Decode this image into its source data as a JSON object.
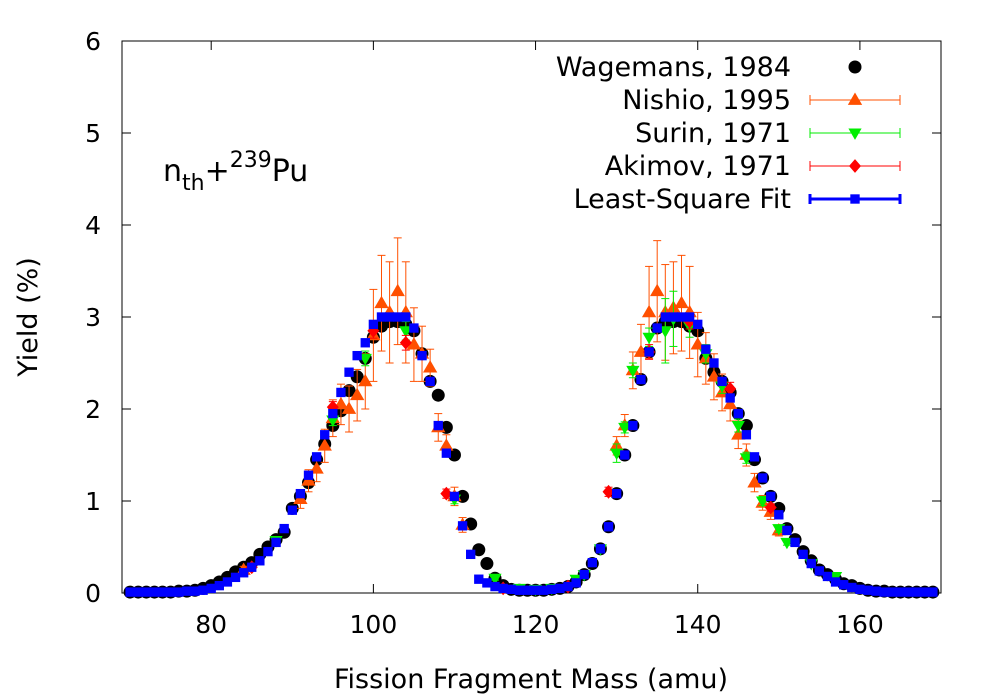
{
  "chart_data": {
    "type": "scatter",
    "title": "",
    "xlabel": "Fission Fragment Mass (amu)",
    "ylabel": "Yield (%)",
    "xlim": [
      69,
      170
    ],
    "ylim": [
      0,
      6
    ],
    "x_ticks": [
      80,
      100,
      120,
      140,
      160
    ],
    "y_ticks": [
      0,
      1,
      2,
      3,
      4,
      5,
      6
    ],
    "grid": false,
    "legend_position": "top-right",
    "annotation": {
      "base": "n",
      "sub": "th",
      "plus": "+",
      "sup": "239",
      "element": "Pu"
    },
    "series": [
      {
        "name": "Wagemans, 1984",
        "marker": "circle",
        "color": "#000000",
        "x": [
          70,
          71,
          72,
          73,
          74,
          75,
          76,
          77,
          78,
          79,
          80,
          81,
          82,
          83,
          84,
          85,
          86,
          87,
          88,
          89,
          90,
          91,
          92,
          93,
          94,
          95,
          96,
          97,
          98,
          99,
          100,
          101,
          102,
          103,
          104,
          105,
          106,
          107,
          108,
          109,
          110,
          111,
          112,
          113,
          114,
          115,
          116,
          117,
          118,
          119,
          120,
          121,
          122,
          123,
          124,
          125,
          126,
          127,
          128,
          129,
          130,
          131,
          132,
          133,
          134,
          135,
          136,
          137,
          138,
          139,
          140,
          141,
          142,
          143,
          144,
          145,
          146,
          147,
          148,
          149,
          150,
          151,
          152,
          153,
          154,
          155,
          156,
          157,
          158,
          159,
          160,
          161,
          162,
          163,
          164,
          165,
          166,
          167,
          168,
          169
        ],
        "y": [
          0.01,
          0.01,
          0.01,
          0.01,
          0.01,
          0.01,
          0.02,
          0.02,
          0.03,
          0.05,
          0.08,
          0.12,
          0.17,
          0.23,
          0.28,
          0.33,
          0.42,
          0.5,
          0.58,
          0.66,
          0.92,
          1.05,
          1.2,
          1.45,
          1.62,
          1.82,
          1.98,
          2.2,
          2.35,
          2.55,
          2.78,
          2.9,
          2.95,
          2.95,
          2.92,
          2.85,
          2.6,
          2.3,
          2.15,
          1.8,
          1.5,
          1.05,
          0.75,
          0.47,
          0.32,
          0.16,
          0.08,
          0.04,
          0.03,
          0.03,
          0.03,
          0.03,
          0.04,
          0.05,
          0.07,
          0.12,
          0.2,
          0.32,
          0.48,
          0.72,
          1.08,
          1.5,
          1.82,
          2.32,
          2.62,
          2.88,
          2.95,
          2.95,
          2.95,
          2.9,
          2.85,
          2.55,
          2.4,
          2.3,
          2.18,
          1.95,
          1.82,
          1.45,
          1.25,
          1.05,
          0.92,
          0.7,
          0.58,
          0.45,
          0.35,
          0.25,
          0.2,
          0.15,
          0.1,
          0.08,
          0.05,
          0.03,
          0.02,
          0.02,
          0.01,
          0.01,
          0.01,
          0.01,
          0.01,
          0.01
        ]
      },
      {
        "name": "Nishio, 1995",
        "marker": "triangle-up",
        "color": "#ff5000",
        "x": [
          84,
          91,
          92,
          93,
          94,
          95,
          96,
          97,
          98,
          99,
          100,
          101,
          102,
          103,
          104,
          105,
          106,
          107,
          108,
          109,
          110,
          111,
          130,
          131,
          132,
          133,
          134,
          135,
          136,
          137,
          138,
          139,
          140,
          141,
          142,
          143,
          144,
          145,
          146,
          147,
          148,
          149,
          150
        ],
        "y": [
          0.25,
          1.02,
          1.22,
          1.35,
          1.6,
          1.9,
          2.05,
          2.0,
          2.15,
          2.3,
          2.8,
          3.15,
          3.05,
          3.28,
          3.05,
          2.7,
          2.6,
          2.45,
          1.8,
          1.6,
          1.05,
          0.74,
          1.6,
          1.82,
          2.42,
          2.62,
          3.05,
          3.28,
          3.05,
          3.1,
          3.15,
          3.05,
          2.7,
          2.55,
          2.35,
          2.18,
          2.05,
          1.72,
          1.5,
          1.2,
          0.98,
          0.88,
          0.68
        ],
        "err": [
          0.04,
          0.1,
          0.12,
          0.14,
          0.18,
          0.2,
          0.22,
          0.25,
          0.28,
          0.3,
          0.5,
          0.52,
          0.55,
          0.58,
          0.55,
          0.4,
          0.3,
          0.2,
          0.15,
          0.12,
          0.1,
          0.08,
          0.1,
          0.12,
          0.2,
          0.3,
          0.5,
          0.55,
          0.52,
          0.5,
          0.52,
          0.5,
          0.35,
          0.28,
          0.25,
          0.2,
          0.18,
          0.15,
          0.12,
          0.1,
          0.08,
          0.08,
          0.06
        ]
      },
      {
        "name": "Surin, 1971",
        "marker": "triangle-down",
        "color": "#00ee00",
        "x": [
          88,
          95,
          99,
          104,
          110,
          115,
          118,
          120,
          122,
          125,
          126,
          128,
          130,
          131,
          132,
          134,
          136,
          137,
          139,
          141,
          143,
          145,
          146,
          148,
          150,
          151,
          154,
          157
        ],
        "y": [
          0.57,
          1.88,
          2.55,
          2.85,
          1.02,
          0.16,
          0.05,
          0.04,
          0.05,
          0.15,
          0.2,
          0.48,
          1.52,
          1.8,
          2.42,
          2.78,
          2.85,
          2.98,
          2.9,
          2.6,
          2.25,
          1.82,
          1.47,
          1.0,
          0.7,
          0.55,
          0.32,
          0.18
        ],
        "err": [
          0.03,
          0.06,
          0.08,
          0.1,
          0.05,
          0.02,
          0.01,
          0.01,
          0.01,
          0.02,
          0.02,
          0.03,
          0.1,
          0.06,
          0.08,
          0.1,
          0.35,
          0.3,
          0.12,
          0.1,
          0.08,
          0.07,
          0.06,
          0.05,
          0.04,
          0.03,
          0.02,
          0.02
        ]
      },
      {
        "name": "Akimov, 1971",
        "marker": "diamond",
        "color": "#ff0000",
        "x": [
          85,
          95,
          100,
          104,
          109,
          116,
          124,
          129,
          134,
          139,
          144,
          149
        ],
        "y": [
          0.28,
          2.02,
          2.85,
          2.72,
          1.08,
          0.05,
          0.07,
          1.1,
          2.62,
          2.95,
          2.22,
          0.93
        ],
        "err": [
          0.02,
          0.06,
          0.08,
          0.08,
          0.05,
          0.01,
          0.01,
          0.05,
          0.08,
          0.08,
          0.07,
          0.04
        ]
      },
      {
        "name": "Least-Square Fit",
        "marker": "square",
        "color": "#0000ff",
        "x": [
          70,
          71,
          72,
          73,
          74,
          75,
          76,
          77,
          78,
          79,
          80,
          81,
          82,
          83,
          84,
          85,
          86,
          87,
          88,
          89,
          90,
          91,
          92,
          93,
          94,
          95,
          96,
          97,
          98,
          99,
          100,
          101,
          102,
          103,
          104,
          105,
          106,
          107,
          108,
          109,
          110,
          111,
          112,
          113,
          114,
          115,
          116,
          117,
          118,
          119,
          120,
          121,
          122,
          123,
          124,
          125,
          126,
          127,
          128,
          129,
          130,
          131,
          132,
          133,
          134,
          135,
          136,
          137,
          138,
          139,
          140,
          141,
          142,
          143,
          144,
          145,
          146,
          147,
          148,
          149,
          150,
          151,
          152,
          153,
          154,
          155,
          156,
          157,
          158,
          159,
          160,
          161,
          162,
          163,
          164,
          165,
          166,
          167,
          168,
          169
        ],
        "y": [
          0.01,
          0.01,
          0.01,
          0.01,
          0.01,
          0.01,
          0.01,
          0.02,
          0.02,
          0.03,
          0.05,
          0.08,
          0.12,
          0.17,
          0.22,
          0.28,
          0.35,
          0.45,
          0.55,
          0.7,
          0.9,
          1.08,
          1.28,
          1.48,
          1.72,
          1.95,
          2.18,
          2.4,
          2.58,
          2.72,
          2.92,
          3.0,
          3.0,
          3.0,
          3.0,
          2.88,
          2.58,
          2.3,
          1.82,
          1.52,
          1.05,
          0.73,
          0.42,
          0.15,
          0.11,
          0.07,
          0.05,
          0.04,
          0.03,
          0.03,
          0.03,
          0.03,
          0.04,
          0.05,
          0.07,
          0.11,
          0.2,
          0.33,
          0.48,
          0.72,
          1.08,
          1.5,
          1.82,
          2.32,
          2.62,
          2.88,
          3.0,
          3.0,
          3.0,
          3.0,
          2.92,
          2.65,
          2.5,
          2.3,
          2.12,
          1.95,
          1.72,
          1.48,
          1.25,
          1.05,
          0.85,
          0.68,
          0.55,
          0.42,
          0.32,
          0.24,
          0.18,
          0.12,
          0.09,
          0.06,
          0.04,
          0.03,
          0.02,
          0.01,
          0.01,
          0.01,
          0.01,
          0.01,
          0.01,
          0.01
        ],
        "err": [
          0.005,
          0.005,
          0.005,
          0.005,
          0.005,
          0.005,
          0.005,
          0.005,
          0.005,
          0.005,
          0.005,
          0.005,
          0.005,
          0.005,
          0.005,
          0.005,
          0.005,
          0.005,
          0.005,
          0.005,
          0.005,
          0.005,
          0.005,
          0.005,
          0.005,
          0.005,
          0.005,
          0.005,
          0.005,
          0.005,
          0.005,
          0.005,
          0.005,
          0.005,
          0.005,
          0.005,
          0.005,
          0.005,
          0.005,
          0.005,
          0.005,
          0.005,
          0.005,
          0.005,
          0.005,
          0.005,
          0.005,
          0.005,
          0.005,
          0.005,
          0.005,
          0.005,
          0.005,
          0.005,
          0.005,
          0.005,
          0.005,
          0.005,
          0.005,
          0.005,
          0.005,
          0.005,
          0.005,
          0.005,
          0.005,
          0.005,
          0.005,
          0.005,
          0.005,
          0.005,
          0.005,
          0.005,
          0.005,
          0.005,
          0.005,
          0.005,
          0.005,
          0.005,
          0.005,
          0.005,
          0.005,
          0.005,
          0.005,
          0.005,
          0.005,
          0.005,
          0.005,
          0.005,
          0.005,
          0.005,
          0.005,
          0.005,
          0.005,
          0.005,
          0.005,
          0.005,
          0.005,
          0.005,
          0.005,
          0.005
        ]
      }
    ]
  }
}
